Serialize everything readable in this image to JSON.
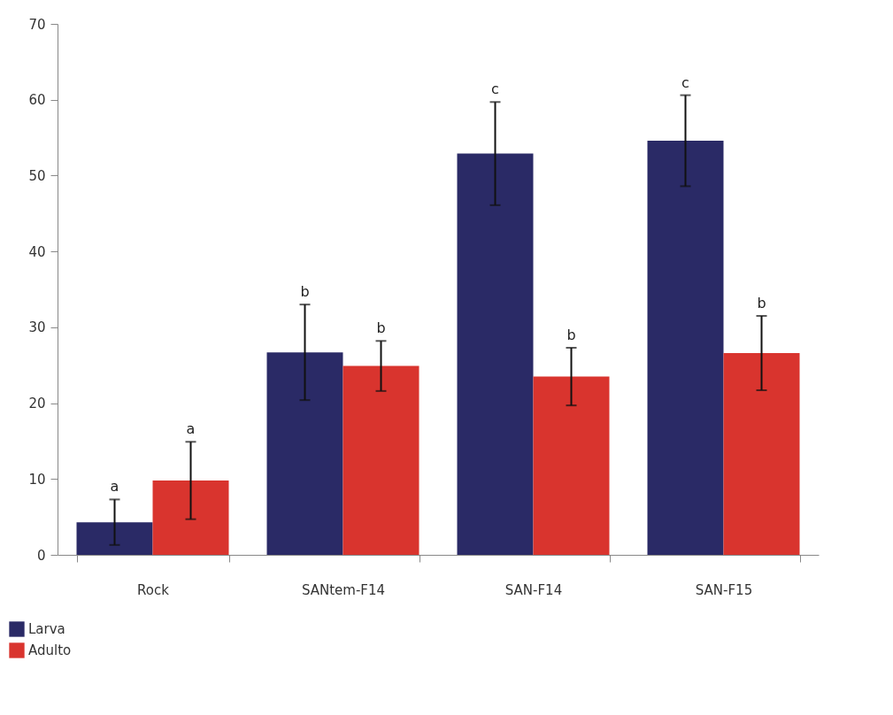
{
  "chart_data": {
    "type": "bar",
    "categories": [
      "Rock",
      "SANtem-F14",
      "SAN-F14",
      "SAN-F15"
    ],
    "series": [
      {
        "name": "Larva",
        "color": "#2a2a66",
        "values": [
          4.3,
          26.7,
          52.9,
          54.6
        ],
        "errors": [
          3.0,
          6.3,
          6.8,
          6.0
        ]
      },
      {
        "name": "Adulto",
        "color": "#d9342e",
        "values": [
          9.8,
          24.9,
          23.5,
          26.6
        ],
        "errors": [
          5.1,
          3.3,
          3.8,
          4.9
        ]
      }
    ],
    "ylim": [
      0,
      70
    ],
    "yticks": [
      0,
      10,
      20,
      30,
      40,
      50,
      60,
      70
    ],
    "grid": false,
    "legend": "bottom left",
    "annotations": [
      "a",
      "a",
      "b",
      "b",
      "c",
      "b",
      "c",
      "b"
    ]
  }
}
